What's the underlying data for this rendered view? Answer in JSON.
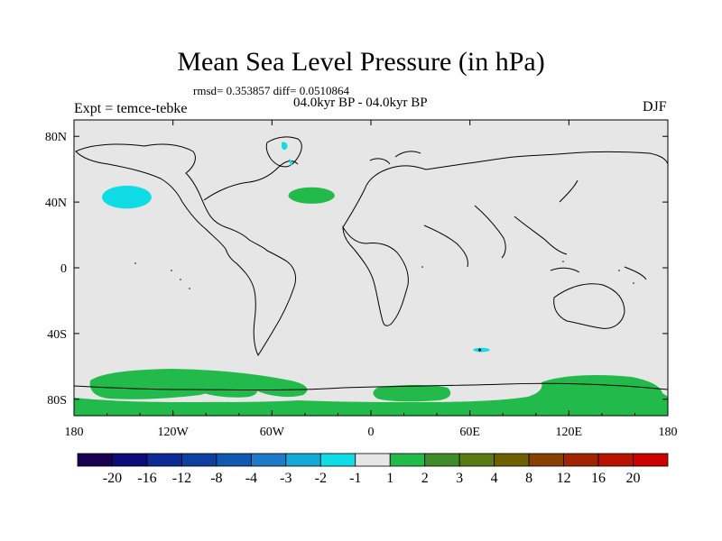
{
  "chart_data": {
    "type": "heatmap",
    "title": "Mean Sea Level Pressure (in hPa)",
    "stats_text": "rmsd= 0.353857 diff= 0.0510864",
    "period": "04.0kyr BP - 04.0kyr BP",
    "expt_label": "Expt = temce-tebke",
    "season": "DJF",
    "x_ticks": [
      "180",
      "120W",
      "60W",
      "0",
      "60E",
      "120E",
      "180"
    ],
    "y_ticks": [
      "80N",
      "40N",
      "0",
      "40S",
      "80S"
    ],
    "lon_range": [
      -180,
      180
    ],
    "lat_range": [
      -90,
      90
    ],
    "colorbar": {
      "labels": [
        "-20",
        "-16",
        "-12",
        "-8",
        "-4",
        "-3",
        "-2",
        "-1",
        "1",
        "2",
        "3",
        "4",
        "8",
        "12",
        "16",
        "20"
      ],
      "colors": [
        "#1a0050",
        "#0b0b7a",
        "#0d2a95",
        "#10409f",
        "#1358b0",
        "#1c7ac6",
        "#14a9d6",
        "#10dce6",
        "#e6e6e6",
        "#22ba4a",
        "#3f8c2a",
        "#5a7a14",
        "#6e6000",
        "#884000",
        "#a02400",
        "#b81400",
        "#cc0000"
      ]
    },
    "anomalies": [
      {
        "region": "North Pacific",
        "lon": -148,
        "lat": 43,
        "dlon": 15,
        "dlat": 7,
        "value_bin": "-2 to -1"
      },
      {
        "region": "North Atlantic",
        "lon": -36,
        "lat": 44,
        "dlon": 14,
        "dlat": 5,
        "value_bin": "1 to 2"
      },
      {
        "region": "Southern Indian Ocean",
        "lon": 67,
        "lat": -50,
        "dlon": 5,
        "dlat": 1.3,
        "value_bin": "-2 to -1"
      }
    ],
    "colors": {
      "land_ocean_bg": "#e6e6e6",
      "positive": "#22ba4a",
      "negative": "#10dce6",
      "coast": "#000000"
    }
  }
}
